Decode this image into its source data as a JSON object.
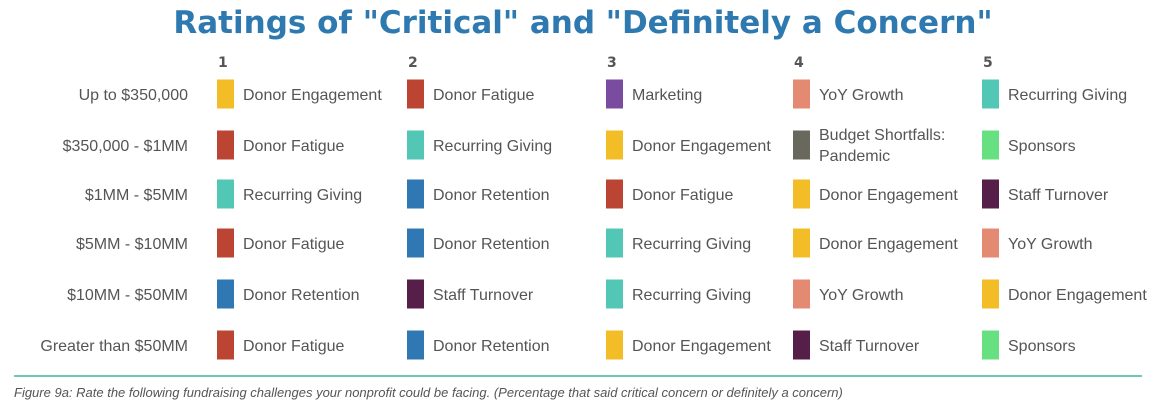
{
  "chart_data": {
    "type": "table",
    "title": "Ratings of \"Critical\" and \"Definitely a Concern\"",
    "columns": [
      "1",
      "2",
      "3",
      "4",
      "5"
    ],
    "rows": [
      {
        "label": "Up to $350,000",
        "items": [
          "Donor Engagement",
          "Donor Fatigue",
          "Marketing",
          "YoY Growth",
          "Recurring Giving"
        ]
      },
      {
        "label": "$350,000 - $1MM",
        "items": [
          "Donor Fatigue",
          "Recurring Giving",
          "Donor Engagement",
          "Budget Shortfalls: Pandemic",
          "Sponsors"
        ]
      },
      {
        "label": "$1MM - $5MM",
        "items": [
          "Recurring Giving",
          "Donor Retention",
          "Donor Fatigue",
          "Donor Engagement",
          "Staff Turnover"
        ]
      },
      {
        "label": "$5MM - $10MM",
        "items": [
          "Donor Fatigue",
          "Donor Retention",
          "Recurring Giving",
          "Donor Engagement",
          "YoY Growth"
        ]
      },
      {
        "label": "$10MM - $50MM",
        "items": [
          "Donor Retention",
          "Staff Turnover",
          "Recurring Giving",
          "YoY Growth",
          "Donor Engagement"
        ]
      },
      {
        "label": "Greater than $50MM",
        "items": [
          "Donor Fatigue",
          "Donor Retention",
          "Donor Engagement",
          "Staff Turnover",
          "Sponsors"
        ]
      }
    ],
    "category_colors": {
      "Donor Engagement": "#f2bd27",
      "Donor Fatigue": "#bb4433",
      "Marketing": "#7a4ca0",
      "YoY Growth": "#e58a72",
      "Recurring Giving": "#53c7b5",
      "Budget Shortfalls: Pandemic": "#68685c",
      "Sponsors": "#66e080",
      "Donor Retention": "#2f78b3",
      "Staff Turnover": "#561f4a"
    },
    "caption": "Figure 9a: Rate the following fundraising challenges your nonprofit could be facing. (Percentage that said critical concern or definitely a concern)"
  },
  "colors": {
    "title": "#2e79b0",
    "text": "#555555",
    "header": "#555555",
    "rule": "#6fc7b9"
  }
}
